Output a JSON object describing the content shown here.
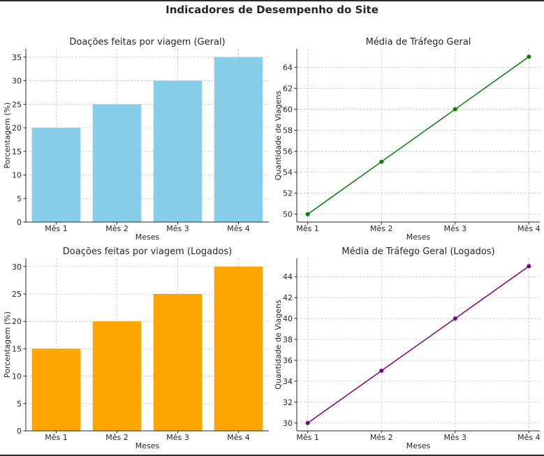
{
  "suptitle": "Indicadores de Desempenho do Site",
  "chart_data": [
    {
      "type": "bar",
      "title": "Doações feitas por viagem (Geral)",
      "xlabel": "Meses",
      "ylabel": "Porcentagem (%)",
      "categories": [
        "Mês 1",
        "Mês 2",
        "Mês 3",
        "Mês 4"
      ],
      "values": [
        20,
        25,
        30,
        35
      ],
      "ylim": [
        0,
        36.75
      ],
      "yticks": [
        0,
        5,
        10,
        15,
        20,
        25,
        30,
        35
      ],
      "color": "#87ceeb",
      "grid": true
    },
    {
      "type": "line",
      "title": "Média de Tráfego Geral",
      "xlabel": "Meses",
      "ylabel": "Quantidade de Viagens",
      "categories": [
        "Mês 1",
        "Mês 2",
        "Mês 3",
        "Mês 4"
      ],
      "values": [
        50,
        55,
        60,
        65
      ],
      "ylim": [
        49.25,
        65.75
      ],
      "yticks": [
        50,
        52,
        54,
        56,
        58,
        60,
        62,
        64
      ],
      "color": "#008000",
      "grid": true
    },
    {
      "type": "bar",
      "title": "Doações feitas por viagem (Logados)",
      "xlabel": "Meses",
      "ylabel": "Porcentagem (%)",
      "categories": [
        "Mês 1",
        "Mês 2",
        "Mês 3",
        "Mês 4"
      ],
      "values": [
        15,
        20,
        25,
        30
      ],
      "ylim": [
        0,
        31.5
      ],
      "yticks": [
        0,
        5,
        10,
        15,
        20,
        25,
        30
      ],
      "color": "#ffa500",
      "grid": true
    },
    {
      "type": "line",
      "title": "Média de Tráfego Geral (Logados)",
      "xlabel": "Meses",
      "ylabel": "Quantidade de Viagens",
      "categories": [
        "Mês 1",
        "Mês 2",
        "Mês 3",
        "Mês 4"
      ],
      "values": [
        30,
        35,
        40,
        45
      ],
      "ylim": [
        29.25,
        45.75
      ],
      "yticks": [
        30,
        32,
        34,
        36,
        38,
        40,
        42,
        44
      ],
      "color": "#800080",
      "grid": true
    }
  ]
}
